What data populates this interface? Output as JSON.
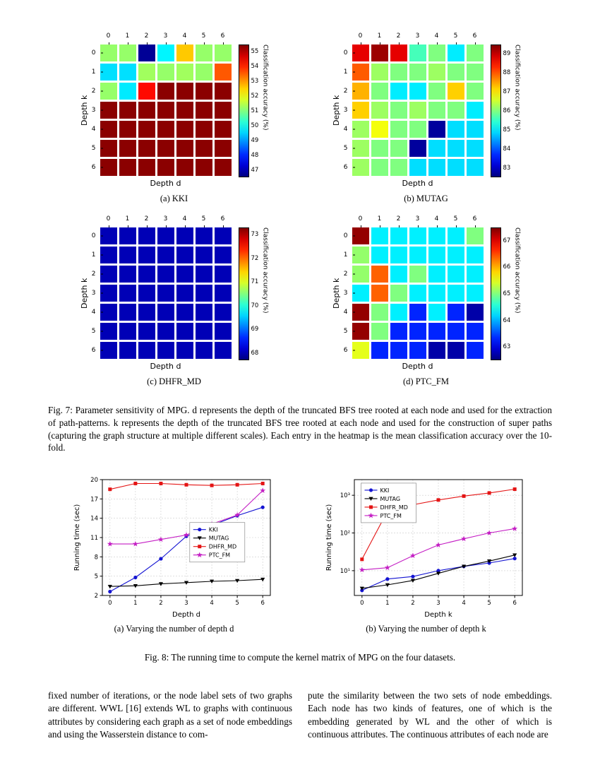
{
  "figure7": {
    "caption": "Fig. 7: Parameter sensitivity of MPG. d represents the depth of the truncated BFS tree rooted at each node and used for the extraction of path-patterns. k represents the depth of the truncated BFS tree rooted at each node and used for the construction of super paths (capturing the graph structure at multiple different scales). Each entry in the heatmap is the mean classification accuracy over the 10-fold."
  },
  "figure8": {
    "caption": "Fig. 8: The running time to compute the kernel matrix of MPG on the four datasets."
  },
  "body_text": {
    "left": "fixed number of iterations, or the node label sets of two graphs are different. WWL [16] extends WL to graphs with continuous attributes by considering each graph as a set of node embeddings and using the Wasserstein distance to com-",
    "right": "pute the similarity between the two sets of node embeddings. Each node has two kinds of features, one of which is the embedding generated by WL and the other of which is continuous attributes. The continuous attributes of each node are"
  },
  "chart_data": [
    {
      "type": "heatmap",
      "id": "kki",
      "caption": "(a) KKI",
      "xlabel": "Depth d",
      "ylabel": "Depth k",
      "xticks": [
        "0",
        "1",
        "2",
        "3",
        "4",
        "5",
        "6"
      ],
      "yticks": [
        "0",
        "1",
        "2",
        "3",
        "4",
        "5",
        "6"
      ],
      "colorbar_label": "Classification accuracy (%)",
      "colorbar_ticks": [
        47,
        48,
        49,
        50,
        51,
        52,
        53,
        54,
        55
      ],
      "vmin": 46.5,
      "vmax": 55.5,
      "values": [
        [
          51.2,
          51.2,
          46.7,
          49.8,
          52.6,
          51.2,
          51.2
        ],
        [
          49.6,
          49.6,
          51.3,
          51.2,
          51.3,
          51.2,
          53.6
        ],
        [
          51.2,
          49.7,
          54.3,
          55.4,
          55.4,
          55.4,
          55.4
        ],
        [
          55.4,
          55.4,
          55.4,
          55.4,
          55.4,
          55.4,
          55.4
        ],
        [
          55.4,
          55.4,
          55.4,
          55.4,
          55.4,
          55.4,
          55.4
        ],
        [
          55.4,
          55.4,
          55.4,
          55.4,
          55.4,
          55.4,
          55.4
        ],
        [
          55.4,
          55.4,
          55.4,
          55.4,
          55.4,
          55.4,
          55.4
        ]
      ]
    },
    {
      "type": "heatmap",
      "id": "mutag",
      "caption": "(b) MUTAG",
      "xlabel": "Depth d",
      "ylabel": "Depth k",
      "xticks": [
        "0",
        "1",
        "2",
        "3",
        "4",
        "5",
        "6"
      ],
      "yticks": [
        "0",
        "1",
        "2",
        "3",
        "4",
        "5",
        "6"
      ],
      "colorbar_label": "Classification accuracy (%)",
      "colorbar_ticks": [
        83,
        84,
        85,
        86,
        87,
        88,
        89
      ],
      "vmin": 82.5,
      "vmax": 89.5,
      "values": [
        [
          88.8,
          89.3,
          88.8,
          85.6,
          86.0,
          85.0,
          86.0
        ],
        [
          88.0,
          86.2,
          86.0,
          86.0,
          86.2,
          86.0,
          86.0
        ],
        [
          87.4,
          86.0,
          85.0,
          85.0,
          86.0,
          87.2,
          86.0
        ],
        [
          87.2,
          86.2,
          86.0,
          86.2,
          86.0,
          86.0,
          85.0
        ],
        [
          86.2,
          86.8,
          86.0,
          86.0,
          82.7,
          84.9,
          84.9
        ],
        [
          86.2,
          86.0,
          86.0,
          82.7,
          84.9,
          84.9,
          84.9
        ],
        [
          86.2,
          86.0,
          86.0,
          84.9,
          84.9,
          84.9,
          84.9
        ]
      ]
    },
    {
      "type": "heatmap",
      "id": "dhfr",
      "caption": "(c) DHFR_MD",
      "xlabel": "Depth d",
      "ylabel": "Depth k",
      "xticks": [
        "0",
        "1",
        "2",
        "3",
        "4",
        "5",
        "6"
      ],
      "yticks": [
        "0",
        "1",
        "2",
        "3",
        "4",
        "5",
        "6"
      ],
      "colorbar_label": "Classification accuracy (%)",
      "colorbar_ticks": [
        68,
        69,
        70,
        71,
        72,
        73
      ],
      "vmin": 67.7,
      "vmax": 73.3,
      "values": [
        [
          68.0,
          68.0,
          68.0,
          68.0,
          68.0,
          68.0,
          68.0
        ],
        [
          68.0,
          68.0,
          68.0,
          68.0,
          68.0,
          68.0,
          68.0
        ],
        [
          68.0,
          68.0,
          68.0,
          68.0,
          68.0,
          68.0,
          68.0
        ],
        [
          68.0,
          68.0,
          68.0,
          68.0,
          68.0,
          68.0,
          68.0
        ],
        [
          68.0,
          68.0,
          68.0,
          68.0,
          68.0,
          68.0,
          68.0
        ],
        [
          68.0,
          68.0,
          68.0,
          68.0,
          68.0,
          68.0,
          68.0
        ],
        [
          68.0,
          68.0,
          68.0,
          68.0,
          68.0,
          68.0,
          68.0
        ]
      ]
    },
    {
      "type": "heatmap",
      "id": "ptc",
      "caption": "(d) PTC_FM",
      "xlabel": "Depth d",
      "ylabel": "Depth k",
      "xticks": [
        "0",
        "1",
        "2",
        "3",
        "4",
        "5",
        "6"
      ],
      "yticks": [
        "0",
        "1",
        "2",
        "3",
        "4",
        "5",
        "6"
      ],
      "colorbar_label": "Classification accuracy (%)",
      "colorbar_ticks": [
        63,
        64,
        65,
        66,
        67
      ],
      "vmin": 62.5,
      "vmax": 67.5,
      "values": [
        [
          67.4,
          64.3,
          64.3,
          64.3,
          64.3,
          64.3,
          65.0
        ],
        [
          65.1,
          64.3,
          64.3,
          64.3,
          64.3,
          64.3,
          64.3
        ],
        [
          65.1,
          66.4,
          64.3,
          65.0,
          64.3,
          64.3,
          64.3
        ],
        [
          64.3,
          66.4,
          65.0,
          64.3,
          64.3,
          64.3,
          64.3
        ],
        [
          67.4,
          65.0,
          64.3,
          63.3,
          64.3,
          63.3,
          62.7
        ],
        [
          67.4,
          65.0,
          63.3,
          63.3,
          63.3,
          63.3,
          63.3
        ],
        [
          65.5,
          63.3,
          63.3,
          63.3,
          62.7,
          62.7,
          63.3
        ]
      ]
    },
    {
      "type": "line",
      "id": "time_d",
      "caption": "(a) Varying the number of depth d",
      "xlabel": "Depth d",
      "ylabel": "Running time (sec)",
      "x": [
        0,
        1,
        2,
        3,
        4,
        5,
        6
      ],
      "yscale": "linear",
      "ylim": [
        2,
        20
      ],
      "yticks": [
        2,
        5,
        8,
        11,
        14,
        17,
        20
      ],
      "legend": {
        "fx": 0.52,
        "fy": 0.37
      },
      "series": [
        {
          "name": "KKI",
          "color": "#1414d2",
          "marker": "circle",
          "values": [
            2.6,
            4.8,
            7.7,
            11.2,
            12.9,
            14.4,
            15.7
          ]
        },
        {
          "name": "MUTAG",
          "color": "#000000",
          "marker": "triangle-down",
          "values": [
            3.4,
            3.5,
            3.8,
            4.0,
            4.2,
            4.3,
            4.5
          ]
        },
        {
          "name": "DHFR_MD",
          "color": "#e41414",
          "marker": "square",
          "values": [
            18.5,
            19.4,
            19.4,
            19.2,
            19.1,
            19.2,
            19.4
          ]
        },
        {
          "name": "PTC_FM",
          "color": "#c41ec4",
          "marker": "star",
          "values": [
            10.0,
            10.0,
            10.7,
            11.4,
            13.1,
            14.5,
            18.3
          ]
        }
      ]
    },
    {
      "type": "line",
      "id": "time_k",
      "caption": "(b) Varying the number of depth k",
      "xlabel": "Depth k",
      "ylabel": "Running time (sec)",
      "x": [
        0,
        1,
        2,
        3,
        4,
        5,
        6
      ],
      "yscale": "log",
      "ylim": [
        2.2,
        2600
      ],
      "yticks": [
        10,
        100,
        1000
      ],
      "ytick_labels": [
        "10¹",
        "10²",
        "10³"
      ],
      "legend": {
        "fx": 0.04,
        "fy": 0.03
      },
      "series": [
        {
          "name": "KKI",
          "color": "#1414d2",
          "marker": "circle",
          "values": [
            3.0,
            6.0,
            7.0,
            10.0,
            13.0,
            16.0,
            21.0
          ]
        },
        {
          "name": "MUTAG",
          "color": "#000000",
          "marker": "triangle-down",
          "values": [
            3.4,
            4.2,
            5.5,
            8.5,
            13.0,
            18.0,
            26.0
          ]
        },
        {
          "name": "DHFR_MD",
          "color": "#e41414",
          "marker": "square",
          "values": [
            20,
            380,
            560,
            750,
            950,
            1150,
            1450
          ]
        },
        {
          "name": "PTC_FM",
          "color": "#c41ec4",
          "marker": "star",
          "values": [
            10.5,
            12,
            25,
            48,
            70,
            100,
            130
          ]
        }
      ]
    }
  ]
}
